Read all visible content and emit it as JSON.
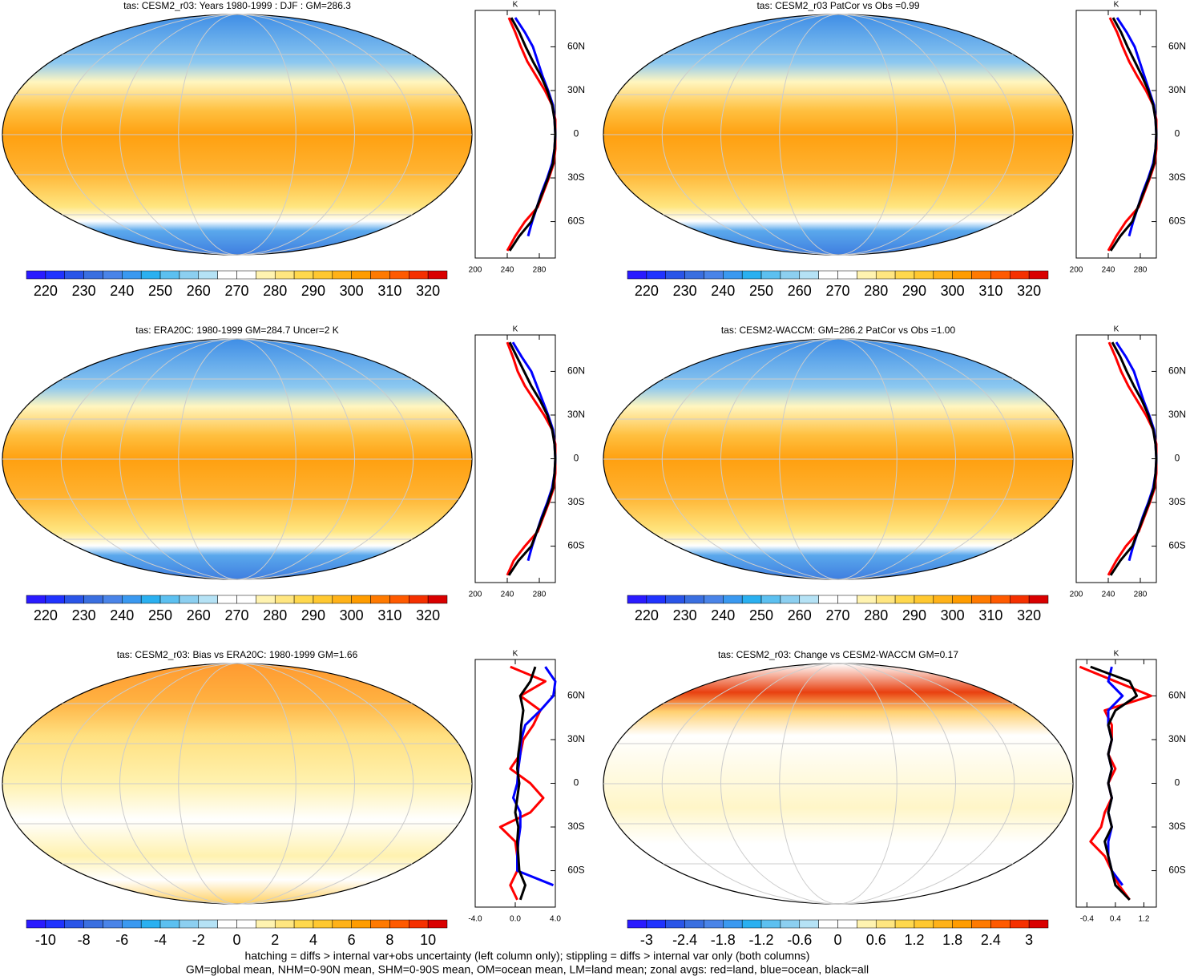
{
  "chart_data": [
    {
      "type": "map",
      "title": "tas: CESM2_r03: Years 1980-1999 : DJF : GM=286.3",
      "colorbar_labels": [
        220,
        230,
        240,
        250,
        260,
        270,
        280,
        290,
        300,
        310,
        320
      ],
      "profile": {
        "unit": "K",
        "xlim": [
          200,
          300
        ],
        "xticks": [
          200,
          240,
          280
        ],
        "ylim": [
          -85,
          85
        ],
        "yticks": [
          {
            "value": 60,
            "label": "60N"
          },
          {
            "value": 30,
            "label": "30N"
          },
          0,
          {
            "value": -30,
            "label": "30S"
          },
          {
            "value": -60,
            "label": "60S"
          }
        ],
        "lat": [
          80,
          70,
          60,
          50,
          40,
          30,
          20,
          10,
          0,
          -10,
          -20,
          -30,
          -40,
          -50,
          -60,
          -70,
          -80
        ],
        "series": [
          {
            "color": "#ff0000",
            "values": [
              242,
              250,
              257,
              265,
              276,
              287,
              296,
              300,
              300,
              300,
              298,
              292,
              285,
              278,
              262,
              250,
              240
            ]
          },
          {
            "color": "#0000ff",
            "values": [
              250,
              262,
              272,
              278,
              284,
              291,
              297,
              299,
              300,
              299,
              296,
              290,
              283,
              277,
              271,
              266,
              null
            ]
          },
          {
            "color": "#000000",
            "values": [
              245,
              255,
              263,
              272,
              282,
              290,
              296,
              299,
              300,
              299,
              297,
              291,
              284,
              277,
              270,
              255,
              243
            ]
          }
        ]
      }
    },
    {
      "type": "map",
      "title": "tas: CESM2_r03 PatCor vs Obs =0.99",
      "colorbar_labels": [
        220,
        230,
        240,
        250,
        260,
        270,
        280,
        290,
        300,
        310,
        320
      ],
      "profile": {
        "unit": "K",
        "xlim": [
          200,
          300
        ],
        "xticks": [
          200,
          240,
          280
        ],
        "ylim": [
          -85,
          85
        ],
        "yticks": [
          {
            "value": 60,
            "label": "60N"
          },
          {
            "value": 30,
            "label": "30N"
          },
          0,
          {
            "value": -30,
            "label": "30S"
          },
          {
            "value": -60,
            "label": "60S"
          }
        ],
        "lat": [
          80,
          70,
          60,
          50,
          40,
          30,
          20,
          10,
          0,
          -10,
          -20,
          -30,
          -40,
          -50,
          -60,
          -70,
          -80
        ],
        "series": [
          {
            "color": "#ff0000",
            "values": [
              242,
              251,
              258,
              266,
              276,
              287,
              296,
              300,
              300,
              300,
              298,
              292,
              285,
              278,
              262,
              250,
              240
            ]
          },
          {
            "color": "#0000ff",
            "values": [
              251,
              263,
              273,
              279,
              285,
              291,
              297,
              299,
              300,
              299,
              296,
              290,
              283,
              277,
              271,
              266,
              null
            ]
          },
          {
            "color": "#000000",
            "values": [
              246,
              256,
              264,
              273,
              282,
              290,
              296,
              299,
              300,
              299,
              297,
              291,
              284,
              277,
              270,
              255,
              243
            ]
          }
        ]
      }
    },
    {
      "type": "map",
      "title": "tas: ERA20C: 1980-1999 GM=284.7 Uncer=2 K",
      "colorbar_labels": [
        220,
        230,
        240,
        250,
        260,
        270,
        280,
        290,
        300,
        310,
        320
      ],
      "profile": {
        "unit": "K",
        "xlim": [
          200,
          300
        ],
        "xticks": [
          200,
          240,
          280
        ],
        "ylim": [
          -85,
          85
        ],
        "yticks": [
          {
            "value": 60,
            "label": "60N"
          },
          {
            "value": 30,
            "label": "30N"
          },
          0,
          {
            "value": -30,
            "label": "30S"
          },
          {
            "value": -60,
            "label": "60S"
          }
        ],
        "lat": [
          80,
          70,
          60,
          50,
          40,
          30,
          20,
          10,
          0,
          -10,
          -20,
          -30,
          -40,
          -50,
          -60,
          -70,
          -80
        ],
        "series": [
          {
            "color": "#ff0000",
            "values": [
              240,
              247,
              253,
              262,
              274,
              286,
              296,
              300,
              300,
              300,
              298,
              292,
              285,
              278,
              262,
              248,
              240
            ]
          },
          {
            "color": "#0000ff",
            "values": [
              247,
              258,
              270,
              277,
              284,
              291,
              297,
              299,
              300,
              299,
              296,
              290,
              283,
              277,
              271,
              266,
              null
            ]
          },
          {
            "color": "#000000",
            "values": [
              243,
              252,
              261,
              270,
              281,
              290,
              296,
              299,
              300,
              299,
              297,
              291,
              284,
              277,
              270,
              254,
              242
            ]
          }
        ]
      }
    },
    {
      "type": "map",
      "title": "tas: CESM2-WACCM: GM=286.2 PatCor vs Obs =1.00",
      "colorbar_labels": [
        220,
        230,
        240,
        250,
        260,
        270,
        280,
        290,
        300,
        310,
        320
      ],
      "profile": {
        "unit": "K",
        "xlim": [
          200,
          300
        ],
        "xticks": [
          200,
          240,
          280
        ],
        "ylim": [
          -85,
          85
        ],
        "yticks": [
          {
            "value": 60,
            "label": "60N"
          },
          {
            "value": 30,
            "label": "30N"
          },
          0,
          {
            "value": -30,
            "label": "30S"
          },
          {
            "value": -60,
            "label": "60S"
          }
        ],
        "lat": [
          80,
          70,
          60,
          50,
          40,
          30,
          20,
          10,
          0,
          -10,
          -20,
          -30,
          -40,
          -50,
          -60,
          -70,
          -80
        ],
        "series": [
          {
            "color": "#ff0000",
            "values": [
              241,
              249,
              256,
              265,
              276,
              287,
              296,
              300,
              300,
              300,
              298,
              292,
              285,
              278,
              262,
              250,
              240
            ]
          },
          {
            "color": "#0000ff",
            "values": [
              250,
              262,
              272,
              278,
              284,
              291,
              297,
              299,
              300,
              299,
              296,
              290,
              283,
              277,
              271,
              266,
              null
            ]
          },
          {
            "color": "#000000",
            "values": [
              245,
              255,
              263,
              272,
              282,
              290,
              296,
              299,
              300,
              299,
              297,
              291,
              284,
              277,
              270,
              255,
              243
            ]
          }
        ]
      }
    },
    {
      "type": "map",
      "title": "tas: CESM2_r03: Bias vs ERA20C: 1980-1999 GM=1.66",
      "colorbar_labels": [
        -10,
        -8,
        -6,
        -4,
        -2,
        0,
        2,
        4,
        6,
        8,
        10
      ],
      "profile": {
        "unit": "K",
        "xlim": [
          -4,
          4
        ],
        "xticks": [
          {
            "value": -4,
            "label": "-4.0"
          },
          {
            "value": 0,
            "label": "0.0"
          },
          {
            "value": 4,
            "label": "4.0"
          }
        ],
        "ylim": [
          -85,
          85
        ],
        "yticks": [
          {
            "value": 60,
            "label": "60N"
          },
          {
            "value": 30,
            "label": "30N"
          },
          0,
          {
            "value": -30,
            "label": "30S"
          },
          {
            "value": -60,
            "label": "60S"
          }
        ],
        "lat": [
          80,
          70,
          60,
          50,
          40,
          30,
          20,
          10,
          0,
          -10,
          -20,
          -30,
          -40,
          -50,
          -60,
          -70,
          -80
        ],
        "series": [
          {
            "color": "#ff0000",
            "values": [
              -0.5,
              3,
              0.5,
              2.5,
              1.8,
              0.8,
              0.5,
              -0.5,
              1.5,
              2.8,
              1.5,
              -1.5,
              0,
              0.2,
              0.2,
              -0.5,
              0.2
            ]
          },
          {
            "color": "#0000ff",
            "values": [
              3,
              4,
              3.8,
              2.5,
              1,
              0.6,
              0.5,
              0.3,
              0.2,
              -0.2,
              0.5,
              0.5,
              0.3,
              0.2,
              0.2,
              3.8,
              null
            ]
          },
          {
            "color": "#000000",
            "values": [
              2,
              1.5,
              0.5,
              0.8,
              0.6,
              0.5,
              0.3,
              0.2,
              0.4,
              0.2,
              0,
              0.3,
              0.2,
              0.3,
              0.4,
              1,
              0.5
            ]
          }
        ]
      }
    },
    {
      "type": "map",
      "title": "tas: CESM2_r03: Change vs CESM2-WACCM GM=0.17",
      "colorbar_labels": [
        -3,
        -2.4,
        -1.8,
        -1.2,
        -0.6,
        0,
        0.6,
        1.2,
        1.8,
        2.4,
        3
      ],
      "profile": {
        "unit": "K",
        "xlim": [
          -0.7,
          1.55
        ],
        "xticks": [
          -0.4,
          0.4,
          1.2
        ],
        "ylim": [
          -85,
          85
        ],
        "yticks": [
          {
            "value": 60,
            "label": "60N"
          },
          {
            "value": 30,
            "label": "30N"
          },
          0,
          {
            "value": -30,
            "label": "30S"
          },
          {
            "value": -60,
            "label": "60S"
          }
        ],
        "lat": [
          80,
          70,
          60,
          50,
          40,
          30,
          20,
          10,
          0,
          -10,
          -20,
          -30,
          -40,
          -50,
          -60,
          -70,
          -80
        ],
        "series": [
          {
            "color": "#ff0000",
            "values": [
              -0.6,
              0.4,
              1.4,
              0.1,
              0.3,
              0.3,
              0.2,
              0.4,
              0.2,
              0.3,
              0.1,
              0,
              -0.3,
              0.1,
              0.3,
              0.5,
              0.8
            ]
          },
          {
            "color": "#0000ff",
            "values": [
              0.3,
              0.2,
              0.6,
              0.2,
              0.2,
              0.3,
              0.2,
              0.3,
              0.2,
              0.3,
              0.2,
              0.3,
              0.2,
              0.2,
              0.3,
              0.6,
              null
            ]
          },
          {
            "color": "#000000",
            "values": [
              -0.3,
              0.8,
              1.0,
              0.4,
              0.2,
              0.3,
              0.2,
              0.3,
              0.2,
              0.3,
              0.2,
              0.3,
              0.1,
              0.2,
              0.3,
              0.4,
              0.8
            ]
          }
        ]
      }
    }
  ],
  "colorbar_colors": [
    "#2a1bff",
    "#2033ff",
    "#2a55e8",
    "#3a6fe0",
    "#4a84e8",
    "#3a99f0",
    "#2ab0f0",
    "#5cc0f0",
    "#8ccff0",
    "#b5e2f5",
    "#ffffff",
    "#ffffff",
    "#fff3b0",
    "#ffe680",
    "#ffd84d",
    "#ffc830",
    "#ffb219",
    "#ff9c00",
    "#ff7a00",
    "#ff5a00",
    "#f53000",
    "#d90000"
  ],
  "footnote": [
    "hatching = diffs > internal var+obs uncertainty (left column only); stippling = diffs > internal var only (both columns)",
    "GM=global mean, NHM=0-90N mean, SHM=0-90S mean, OM=ocean mean, LM=land mean; zonal avgs: red=land, blue=ocean, black=all"
  ]
}
